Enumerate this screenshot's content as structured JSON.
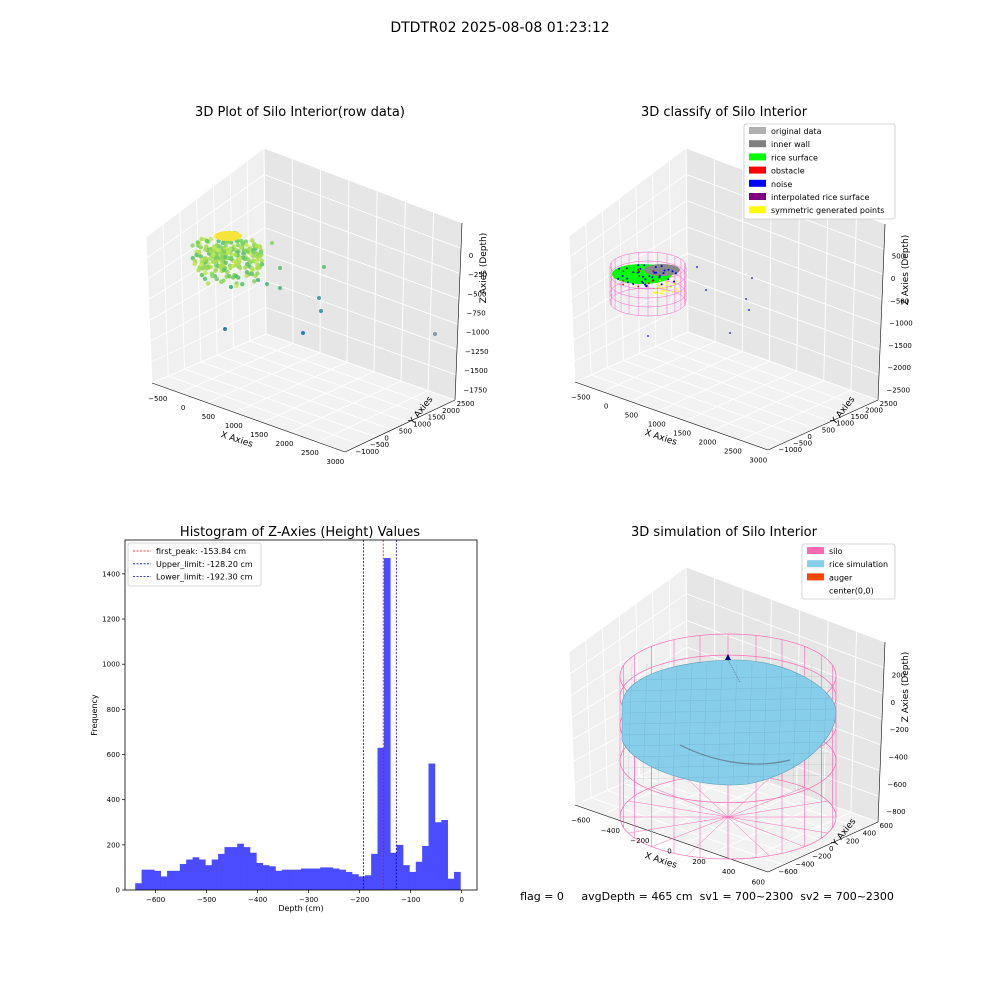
{
  "suptitle": "DTDTR02 2025-08-08 01:23:12",
  "colors": {
    "hist_bar": "#4b4bff",
    "first_peak": "#ff0000",
    "limits": "#0000aa",
    "silo": "#ff69b4",
    "rice": "#87ceeb",
    "auger": "#ff4500",
    "pane_left": "#f0f0f0",
    "pane_right": "#e6e6e6",
    "pane_floor": "#f2f2f2"
  },
  "chart_data": [
    {
      "type": "scatter",
      "title": "3D Plot of Silo Interior(row data)",
      "xlabel": "X Axies",
      "ylabel": "Y Axies",
      "zlabel": "Z Axies (Depth)",
      "x_ticks": [
        "−500",
        "0",
        "500",
        "1000",
        "1500",
        "2000",
        "2500",
        "3000"
      ],
      "y_ticks": [
        "−1000",
        "−500",
        "0",
        "500",
        "1000",
        "1500",
        "2000",
        "2500"
      ],
      "z_ticks": [
        "0",
        "−250",
        "−500",
        "−750",
        "−1000",
        "−1250",
        "−1500",
        "−1750"
      ],
      "outlier_points": [
        {
          "x": 1600,
          "y": -200,
          "z": -600
        },
        {
          "x": 1850,
          "y": 0,
          "z": -500
        },
        {
          "x": 2200,
          "y": 300,
          "z": -1350
        },
        {
          "x": 2100,
          "y": 900,
          "z": -1250
        },
        {
          "x": 1700,
          "y": 1200,
          "z": -1500
        },
        {
          "x": 3000,
          "y": 2400,
          "z": -1750
        },
        {
          "x": 500,
          "y": -800,
          "z": -1700
        },
        {
          "x": 1400,
          "y": -300,
          "z": -950
        },
        {
          "x": 1500,
          "y": 100,
          "z": -1050
        }
      ]
    },
    {
      "type": "scatter",
      "title": "3D classify of Silo Interior",
      "xlabel": "X Axies",
      "ylabel": "Y Axies",
      "zlabel": "Z Axies (Depth)",
      "x_ticks": [
        "−500",
        "0",
        "500",
        "1000",
        "1500",
        "2000",
        "2500",
        "3000"
      ],
      "y_ticks": [
        "−1000",
        "−500",
        "0",
        "500",
        "1000",
        "1500",
        "2000",
        "2500"
      ],
      "z_ticks": [
        "500",
        "0",
        "−500",
        "−1000",
        "−1500",
        "−2000",
        "−2500"
      ],
      "legend": [
        {
          "label": "original data",
          "color": "#b0b0b0"
        },
        {
          "label": "inner wall",
          "color": "#808080"
        },
        {
          "label": "rice surface",
          "color": "#00ff00"
        },
        {
          "label": "obstacle",
          "color": "#ff0000"
        },
        {
          "label": "noise",
          "color": "#0000ff"
        },
        {
          "label": "interpolated rice surface",
          "color": "#800080"
        },
        {
          "label": "symmetric generated points",
          "color": "#ffff00"
        }
      ],
      "legend_position": "top-right"
    },
    {
      "type": "bar",
      "title": "Histogram of Z-Axies (Height) Values",
      "xlabel": "Depth (cm)",
      "ylabel": "Frequency",
      "xlim": [
        -660,
        30
      ],
      "ylim": [
        0,
        1550
      ],
      "x_ticks": [
        -600,
        -500,
        -400,
        -300,
        -200,
        -100,
        0
      ],
      "y_ticks": [
        0,
        200,
        400,
        600,
        800,
        1000,
        1200,
        1400
      ],
      "bin_start": -640,
      "bin_width": 12.5,
      "values": [
        30,
        90,
        90,
        85,
        60,
        85,
        85,
        115,
        135,
        145,
        135,
        110,
        135,
        160,
        190,
        190,
        205,
        190,
        165,
        120,
        110,
        105,
        85,
        90,
        90,
        90,
        95,
        95,
        95,
        100,
        100,
        95,
        90,
        80,
        70,
        60,
        65,
        160,
        630,
        1470,
        165,
        200,
        110,
        80,
        125,
        195,
        560,
        300,
        310,
        50,
        80
      ],
      "vlines": [
        {
          "label": "first_peak: -153.84 cm",
          "x": -153.84,
          "style": "first_peak"
        },
        {
          "label": "Upper_limit: -128.20 cm",
          "x": -128.2,
          "style": "limit"
        },
        {
          "label": "Lower_limit: -192.30 cm",
          "x": -192.3,
          "style": "limit"
        }
      ],
      "legend_position": "top-left"
    },
    {
      "type": "scatter",
      "title": "3D simulation of Silo Interior",
      "xlabel": "X Axies",
      "ylabel": "Y Axies",
      "zlabel": "Z Axies (Depth)",
      "x_ticks": [
        "−600",
        "−400",
        "−200",
        "0",
        "200",
        "400",
        "600"
      ],
      "y_ticks": [
        "−600",
        "−400",
        "−200",
        "0",
        "200",
        "400",
        "600"
      ],
      "z_ticks": [
        "200",
        "0",
        "−200",
        "−400",
        "−600",
        "−800"
      ],
      "legend": [
        {
          "label": "silo",
          "color": "#ff69b4"
        },
        {
          "label": "rice simulation",
          "color": "#87ceeb"
        },
        {
          "label": "auger",
          "color": "#ff4500"
        },
        {
          "label": "center(0,0)",
          "color": "#ffffff"
        }
      ],
      "legend_position": "top-right",
      "status_text": "flag = 0     avgDepth = 465 cm  sv1 = 700~2300  sv2 = 700~2300"
    }
  ]
}
